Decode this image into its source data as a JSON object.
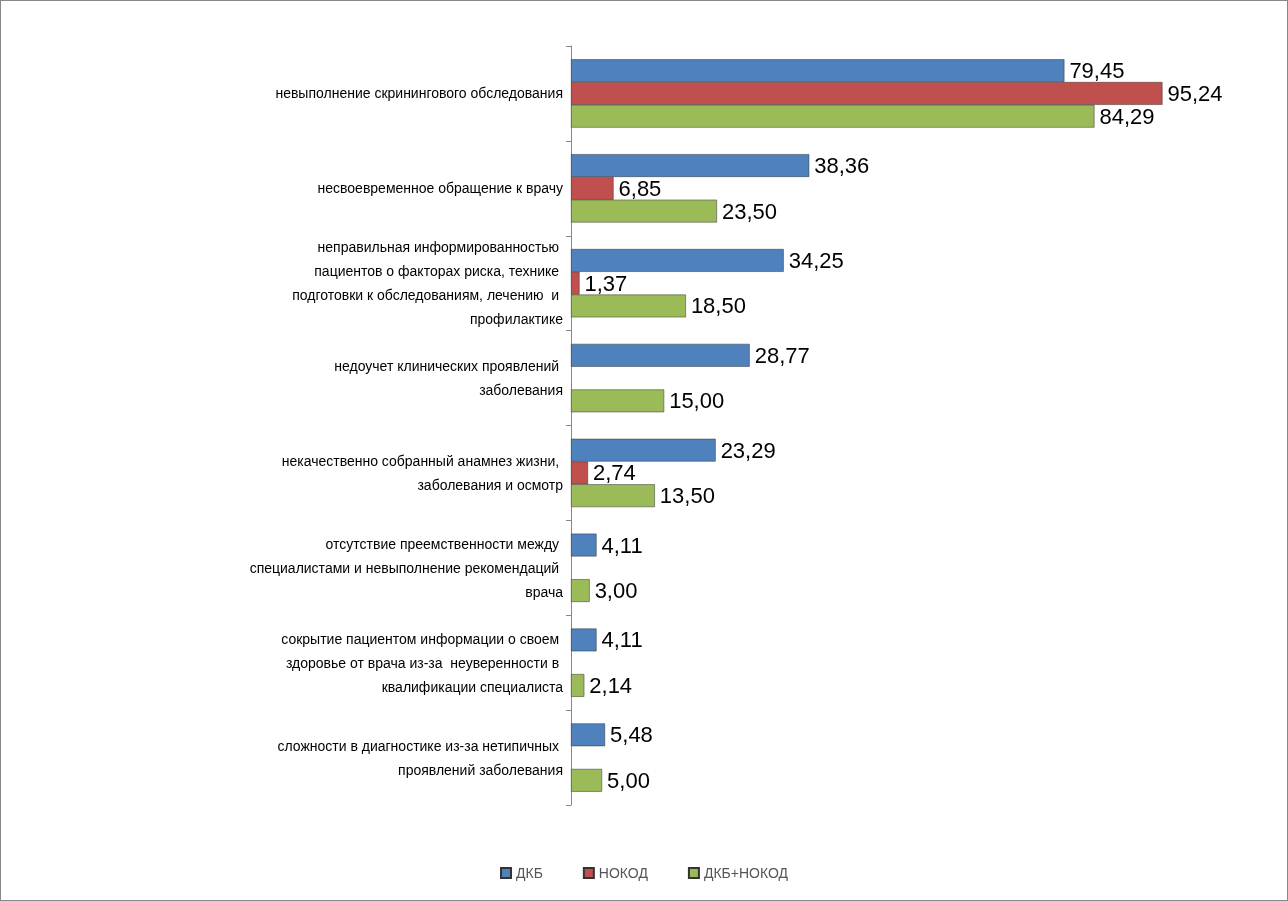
{
  "chart_data": {
    "type": "bar",
    "orientation": "horizontal",
    "legend": "bottom",
    "categories": [
      "невыполнение скринингового обследования",
      "несвоевременное обращение к врачу",
      "неправильная информированностью пациентов о факторах риска, технике подготовки к обследованиям, лечению  и профилактике",
      "недоучет клинических проявлений заболевания",
      "некачественно собранный анамнез жизни, заболевания и осмотр",
      "отсутствие преемственности между специалистами и невыполнение рекомендаций врача",
      "сокрытие пациентом информации о своем здоровье от врача из-за  неуверенности в квалификации специалиста",
      "сложности в диагностике из-за нетипичных проявлений заболевания"
    ],
    "series": [
      {
        "name": "ДКБ",
        "color": "#4f81bd",
        "values": [
          79.45,
          38.36,
          34.25,
          28.77,
          23.29,
          4.11,
          4.11,
          5.48
        ],
        "value_labels": [
          "79,45",
          "38,36",
          "34,25",
          "28,77",
          "23,29",
          "4,11",
          "4,11",
          "5,48"
        ]
      },
      {
        "name": "НОКОД",
        "color": "#c0504d",
        "values": [
          95.24,
          6.85,
          1.37,
          null,
          2.74,
          null,
          null,
          null
        ],
        "value_labels": [
          "95,24",
          "6,85",
          "1,37",
          null,
          "2,74",
          null,
          null,
          null
        ]
      },
      {
        "name": "ДКБ+НОКОД",
        "color": "#9bbb59",
        "values": [
          84.29,
          23.5,
          18.5,
          15.0,
          13.5,
          3.0,
          2.14,
          5.0
        ],
        "value_labels": [
          "84,29",
          "23,50",
          "18,50",
          "15,00",
          "13,50",
          "3,00",
          "2,14",
          "5,00"
        ]
      }
    ]
  }
}
